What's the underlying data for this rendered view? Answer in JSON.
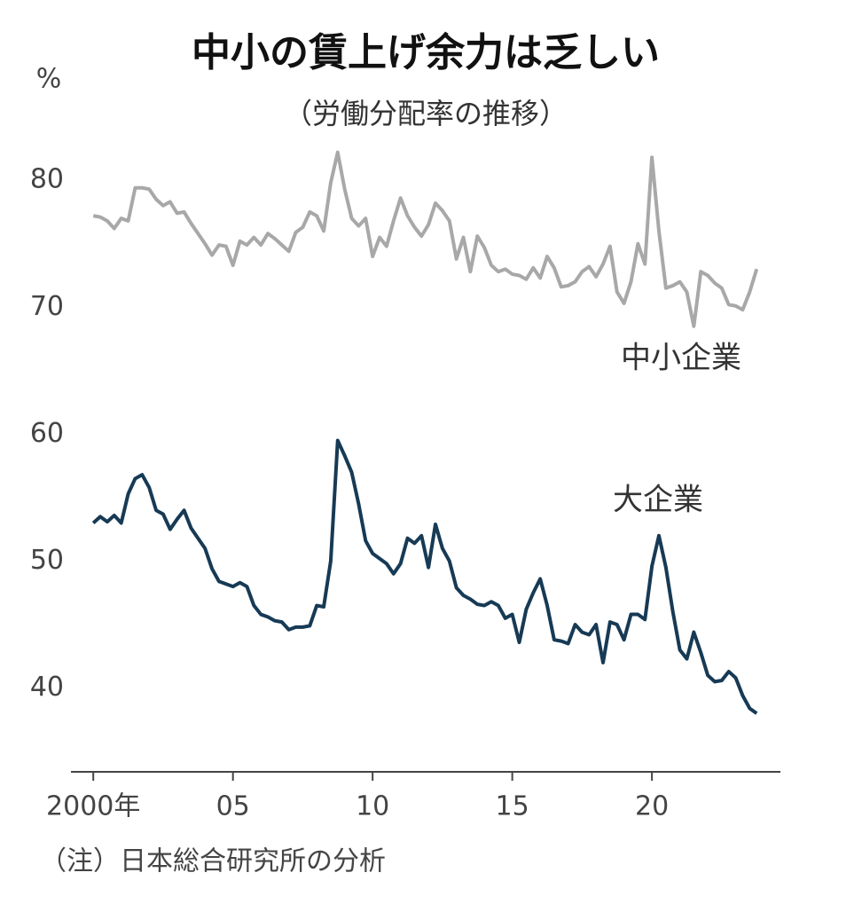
{
  "chart_data": {
    "type": "line",
    "title": "中小の賃上げ余力は乏しい",
    "subtitle": "（労働分配率の推移）",
    "y_unit": "%",
    "note": "（注）日本総合研究所の分析",
    "x": [
      2000,
      2000.25,
      2000.5,
      2000.75,
      2001,
      2001.25,
      2001.5,
      2001.75,
      2002,
      2002.25,
      2002.5,
      2002.75,
      2003,
      2003.25,
      2003.5,
      2003.75,
      2004,
      2004.25,
      2004.5,
      2004.75,
      2005,
      2005.25,
      2005.5,
      2005.75,
      2006,
      2006.25,
      2006.5,
      2006.75,
      2007,
      2007.25,
      2007.5,
      2007.75,
      2008,
      2008.25,
      2008.5,
      2008.75,
      2009,
      2009.25,
      2009.5,
      2009.75,
      2010,
      2010.25,
      2010.5,
      2010.75,
      2011,
      2011.25,
      2011.5,
      2011.75,
      2012,
      2012.25,
      2012.5,
      2012.75,
      2013,
      2013.25,
      2013.5,
      2013.75,
      2014,
      2014.25,
      2014.5,
      2014.75,
      2015,
      2015.25,
      2015.5,
      2015.75,
      2016,
      2016.25,
      2016.5,
      2016.75,
      2017,
      2017.25,
      2017.5,
      2017.75,
      2018,
      2018.25,
      2018.5,
      2018.75,
      2019,
      2019.25,
      2019.5,
      2019.75,
      2020,
      2020.25,
      2020.5,
      2020.75,
      2021,
      2021.25,
      2021.5,
      2021.75,
      2022,
      2022.25,
      2022.5,
      2022.75,
      2023,
      2023.25,
      2023.5,
      2023.75
    ],
    "series": [
      {
        "name": "中小企業",
        "color": "#a8a8a8",
        "values": [
          77.2,
          77.1,
          76.8,
          76.2,
          77.0,
          76.8,
          79.4,
          79.4,
          79.3,
          78.5,
          78.0,
          78.3,
          77.4,
          77.5,
          76.6,
          75.8,
          75.0,
          74.1,
          74.9,
          74.8,
          73.3,
          75.2,
          74.9,
          75.5,
          74.9,
          75.8,
          75.4,
          74.9,
          74.4,
          75.9,
          76.3,
          77.5,
          77.2,
          76.0,
          79.8,
          82.2,
          79.3,
          77.0,
          76.4,
          77.0,
          74.0,
          75.5,
          74.8,
          76.8,
          78.6,
          77.2,
          76.3,
          75.6,
          76.5,
          78.2,
          77.6,
          76.8,
          73.8,
          75.5,
          72.8,
          75.6,
          74.7,
          73.3,
          72.8,
          73.0,
          72.6,
          72.5,
          72.2,
          73.1,
          72.3,
          74.0,
          73.1,
          71.6,
          71.7,
          72.0,
          72.8,
          73.2,
          72.4,
          73.4,
          74.8,
          71.2,
          70.3,
          72.0,
          75.0,
          73.4,
          81.8,
          76.0,
          71.5,
          71.7,
          72.0,
          71.2,
          68.5,
          72.8,
          72.5,
          71.9,
          71.5,
          70.2,
          70.1,
          69.8,
          71.2,
          73.0
        ]
      },
      {
        "name": "大企業",
        "color": "#173a55",
        "values": [
          53.0,
          53.5,
          53.1,
          53.6,
          53.0,
          55.3,
          56.5,
          56.8,
          55.8,
          54.0,
          53.7,
          52.5,
          53.3,
          54.0,
          52.6,
          51.8,
          51.0,
          49.4,
          48.4,
          48.2,
          48.0,
          48.3,
          48.0,
          46.5,
          45.8,
          45.6,
          45.3,
          45.2,
          44.6,
          44.8,
          44.8,
          44.9,
          46.5,
          46.4,
          50.0,
          59.5,
          58.3,
          57.0,
          54.5,
          51.6,
          50.6,
          50.2,
          49.8,
          49.0,
          49.8,
          51.8,
          51.4,
          52.0,
          49.5,
          52.9,
          51.0,
          50.0,
          47.9,
          47.3,
          47.0,
          46.6,
          46.5,
          46.8,
          46.5,
          45.5,
          45.8,
          43.6,
          46.2,
          47.5,
          48.6,
          46.5,
          43.8,
          43.7,
          43.5,
          45.0,
          44.4,
          44.2,
          45.0,
          42.0,
          45.2,
          45.0,
          43.8,
          45.8,
          45.8,
          45.4,
          49.6,
          52.0,
          49.5,
          46.0,
          43.0,
          42.3,
          44.4,
          42.8,
          41.0,
          40.5,
          40.6,
          41.3,
          40.8,
          39.4,
          38.4,
          38.0
        ]
      }
    ],
    "xlim": [
      1999.2,
      2024.6
    ],
    "xticks": [
      {
        "value": 2000,
        "label": "2000年"
      },
      {
        "value": 2005,
        "label": "05"
      },
      {
        "value": 2010,
        "label": "10"
      },
      {
        "value": 2015,
        "label": "15"
      },
      {
        "value": 2020,
        "label": "20"
      }
    ],
    "ylim": [
      33.4,
      87
    ],
    "yticks": [
      40,
      50,
      60,
      70,
      80
    ],
    "grid": false
  }
}
